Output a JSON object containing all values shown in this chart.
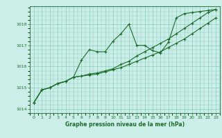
{
  "title": "Graphe pression niveau de la mer (hPa)",
  "bg_color": "#cceee8",
  "grid_color": "#88ccbb",
  "line_color": "#1a6b2a",
  "marker": "+",
  "xlim": [
    -0.5,
    23.5
  ],
  "ylim": [
    1013.8,
    1018.85
  ],
  "yticks": [
    1014,
    1015,
    1016,
    1017,
    1018
  ],
  "xticks": [
    0,
    1,
    2,
    3,
    4,
    5,
    6,
    7,
    8,
    9,
    10,
    11,
    12,
    13,
    14,
    15,
    16,
    17,
    18,
    19,
    20,
    21,
    22,
    23
  ],
  "series1": [
    1014.3,
    1014.9,
    1015.0,
    1015.2,
    1015.3,
    1015.5,
    1016.3,
    1016.8,
    1016.7,
    1016.7,
    1017.2,
    1017.55,
    1018.0,
    1017.0,
    1017.0,
    1016.75,
    1016.65,
    1017.15,
    1018.3,
    1018.5,
    1018.55,
    1018.6,
    1018.65,
    1018.7
  ],
  "series2": [
    1014.3,
    1014.9,
    1015.0,
    1015.2,
    1015.3,
    1015.5,
    1015.55,
    1015.6,
    1015.65,
    1015.75,
    1015.85,
    1015.95,
    1016.1,
    1016.25,
    1016.4,
    1016.55,
    1016.7,
    1016.9,
    1017.1,
    1017.3,
    1017.55,
    1017.8,
    1018.05,
    1018.3
  ],
  "series3": [
    1014.3,
    1014.9,
    1015.0,
    1015.2,
    1015.3,
    1015.5,
    1015.55,
    1015.65,
    1015.7,
    1015.8,
    1015.9,
    1016.1,
    1016.25,
    1016.5,
    1016.7,
    1016.9,
    1017.1,
    1017.3,
    1017.55,
    1017.8,
    1018.05,
    1018.3,
    1018.55,
    1018.7
  ],
  "tick_fontsize": 4.5,
  "xlabel_fontsize": 5.5,
  "lw": 0.8,
  "ms": 3.0
}
